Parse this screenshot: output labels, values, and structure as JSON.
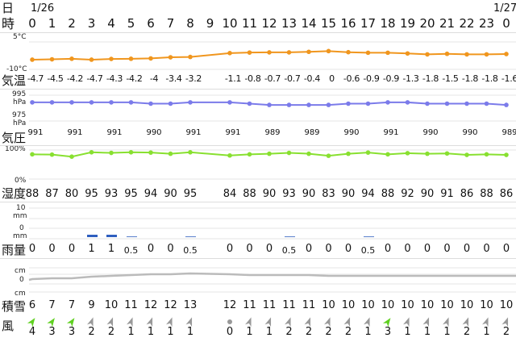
{
  "labels": {
    "day": "日",
    "hour": "時",
    "temp": "気温",
    "pres": "気圧",
    "humid": "湿度",
    "rain": "雨量",
    "snow": "積雪",
    "wind": "風"
  },
  "dates": {
    "start": "1/26",
    "end": "1/27"
  },
  "axes": {
    "temp_top": "5°C",
    "temp_bottom": "-10°C",
    "pres_top": "995",
    "pres_top_unit": "hPa",
    "pres_bottom": "975",
    "pres_bottom_unit": "hPa",
    "humid_top": "100%",
    "humid_bottom": "0%",
    "rain_top": "10",
    "rain_top_unit": "mm",
    "rain_bottom": "0",
    "rain_bottom_unit": "mm",
    "snow_top_unit": "cm",
    "snow_zero": "0",
    "snow_bottom_unit": "cm"
  },
  "hours": [
    "0",
    "1",
    "2",
    "3",
    "4",
    "5",
    "6",
    "7",
    "8",
    "9",
    "10",
    "11",
    "12",
    "13",
    "14",
    "15",
    "16",
    "17",
    "18",
    "19",
    "20",
    "21",
    "22",
    "23",
    "0"
  ],
  "temperature": [
    -4.7,
    -4.5,
    -4.2,
    -4.7,
    -4.3,
    -4.2,
    -4,
    -3.4,
    -3.2,
    null,
    -1.1,
    -0.8,
    -0.7,
    -0.7,
    -0.4,
    0,
    -0.6,
    -0.9,
    -0.9,
    -1.3,
    -1.8,
    -1.5,
    -1.8,
    -1.8,
    -1.6
  ],
  "temperature_labels": [
    "-4.7",
    "-4.5",
    "-4.2",
    "-4.7",
    "-4.3",
    "-4.2",
    "-4",
    "-3.4",
    "-3.2",
    "",
    "-1.1",
    "-0.8",
    "-0.7",
    "-0.7",
    "-0.4",
    "0",
    "-0.6",
    "-0.9",
    "-0.9",
    "-1.3",
    "-1.8",
    "-1.5",
    "-1.8",
    "-1.8",
    "-1.6"
  ],
  "pressure_labels": [
    "991",
    "",
    "991",
    "",
    "991",
    "",
    "990",
    "",
    "991",
    "",
    "991",
    "",
    "989",
    "",
    "989",
    "",
    "990",
    "",
    "991",
    "",
    "990",
    "",
    "990",
    "",
    "989"
  ],
  "humidity": [
    "88",
    "87",
    "80",
    "95",
    "93",
    "95",
    "94",
    "90",
    "95",
    "",
    "84",
    "88",
    "90",
    "93",
    "90",
    "83",
    "90",
    "94",
    "88",
    "92",
    "90",
    "91",
    "86",
    "88",
    "86"
  ],
  "rain": [
    "0",
    "0",
    "0",
    "1",
    "1",
    "0.5",
    "0",
    "0",
    "0.5",
    "",
    "0",
    "0",
    "0",
    "0.5",
    "0",
    "0",
    "0",
    "0.5",
    "0",
    "0",
    "0",
    "0",
    "0",
    "0",
    "0"
  ],
  "snow": [
    "6",
    "7",
    "7",
    "9",
    "10",
    "11",
    "12",
    "12",
    "13",
    "",
    "12",
    "11",
    "11",
    "11",
    "11",
    "10",
    "10",
    "10",
    "10",
    "10",
    "10",
    "10",
    "10",
    "10",
    "10"
  ],
  "wind": [
    "4",
    "3",
    "3",
    "2",
    "2",
    "1",
    "1",
    "1",
    "1",
    "",
    "0",
    "1",
    "1",
    "2",
    "2",
    "2",
    "2",
    "1",
    "3",
    "1",
    "1",
    "1",
    "2",
    "1",
    "2"
  ],
  "colors": {
    "temp": "#f0961e",
    "pres": "#7b7bea",
    "humid": "#88e030",
    "snow": "#bbbbbb",
    "rain": "#2f5fbf",
    "wind_green": "#5fd020",
    "wind_gray": "#999999"
  }
}
